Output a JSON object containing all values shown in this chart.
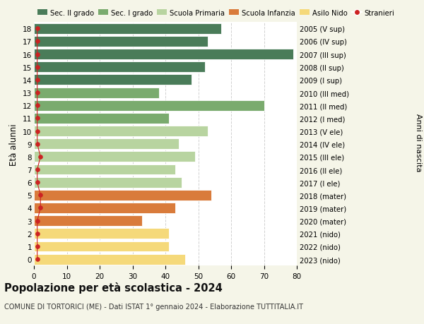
{
  "ages": [
    18,
    17,
    16,
    15,
    14,
    13,
    12,
    11,
    10,
    9,
    8,
    7,
    6,
    5,
    4,
    3,
    2,
    1,
    0
  ],
  "values": [
    57,
    53,
    79,
    52,
    48,
    38,
    70,
    41,
    53,
    44,
    49,
    43,
    45,
    54,
    43,
    33,
    41,
    41,
    46
  ],
  "right_labels": [
    "2005 (V sup)",
    "2006 (IV sup)",
    "2007 (III sup)",
    "2008 (II sup)",
    "2009 (I sup)",
    "2010 (III med)",
    "2011 (II med)",
    "2012 (I med)",
    "2013 (V ele)",
    "2014 (IV ele)",
    "2015 (III ele)",
    "2016 (II ele)",
    "2017 (I ele)",
    "2018 (mater)",
    "2019 (mater)",
    "2020 (mater)",
    "2021 (nido)",
    "2022 (nido)",
    "2023 (nido)"
  ],
  "bar_colors": [
    "#4a7c59",
    "#4a7c59",
    "#4a7c59",
    "#4a7c59",
    "#4a7c59",
    "#7aab6e",
    "#7aab6e",
    "#7aab6e",
    "#b8d4a0",
    "#b8d4a0",
    "#b8d4a0",
    "#b8d4a0",
    "#b8d4a0",
    "#d97b3b",
    "#d97b3b",
    "#d97b3b",
    "#f5d97a",
    "#f5d97a",
    "#f5d97a"
  ],
  "stranieri_x": [
    1,
    1,
    1,
    1,
    1,
    1,
    1,
    1,
    1,
    1,
    2,
    1,
    1,
    2,
    2,
    1,
    1,
    1,
    1
  ],
  "legend_labels": [
    "Sec. II grado",
    "Sec. I grado",
    "Scuola Primaria",
    "Scuola Infanzia",
    "Asilo Nido",
    "Stranieri"
  ],
  "legend_colors": [
    "#4a7c59",
    "#7aab6e",
    "#b8d4a0",
    "#d97b3b",
    "#f5d97a",
    "#cc2222"
  ],
  "title": "Popolazione per età scolastica - 2024",
  "subtitle": "COMUNE DI TORTORICI (ME) - Dati ISTAT 1° gennaio 2024 - Elaborazione TUTTITALIA.IT",
  "ylabel_left": "Età alunni",
  "ylabel_right": "Anni di nascita",
  "xlim": [
    0,
    80
  ],
  "xticks": [
    0,
    10,
    20,
    30,
    40,
    50,
    60,
    70,
    80
  ],
  "background_color": "#f5f5e8",
  "bar_background": "#ffffff",
  "grid_color": "#cccccc"
}
